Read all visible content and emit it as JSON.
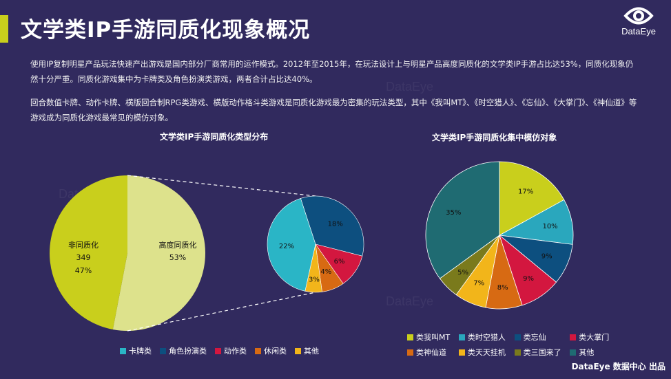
{
  "title": "文学类IP手游同质化现象概况",
  "logo_text": "DataEye",
  "paragraph1": "使用IP复制明星产品玩法快速产出游戏是国内部分厂商常用的运作模式。2012年至2015年，在玩法设计上与明星产品高度同质化的文学类IP手游占比达53%，同质化现象仍然十分严重。同质化游戏集中为卡牌类及角色扮演类游戏，两者合计占比达40%。",
  "paragraph2": "回合数值卡牌、动作卡牌、横版回合制RPG类游戏、横版动作格斗类游戏是同质化游戏最为密集的玩法类型，其中《我叫MT》、《时空猎人》、《忘仙》、《大掌门》、《神仙道》等游戏成为同质化游戏最常见的模仿对象。",
  "watermark": "DataEye",
  "footer": "DataEye 数据中心 出品",
  "chart_data": [
    {
      "type": "pie",
      "title": "文学类IP手游同质化类型分布",
      "main_pie": [
        {
          "name": "非同质化",
          "count": "349",
          "percent": "47%",
          "value": 47,
          "color": "#c9cf1c"
        },
        {
          "name": "高度同质化",
          "percent": "53%",
          "value": 53,
          "color": "#dde28c"
        }
      ],
      "sub_pie": [
        {
          "name": "卡牌类",
          "value": 22,
          "label": "22%",
          "color": "#2ab5c6"
        },
        {
          "name": "角色扮演类",
          "value": 18,
          "label": "18%",
          "color": "#0d4f7f"
        },
        {
          "name": "动作类",
          "value": 6,
          "label": "6%",
          "color": "#d3173f"
        },
        {
          "name": "休闲类",
          "value": 4,
          "label": "4%",
          "color": "#d76a13"
        },
        {
          "name": "其他",
          "value": 3,
          "label": "3%",
          "color": "#f2b51a"
        }
      ]
    },
    {
      "type": "pie",
      "title": "文学类IP手游同质化集中模仿对象",
      "slices": [
        {
          "name": "类我叫MT",
          "value": 17,
          "label": "17%",
          "color": "#c9cf1c"
        },
        {
          "name": "类时空猎人",
          "value": 10,
          "label": "10%",
          "color": "#2aa7bd"
        },
        {
          "name": "类忘仙",
          "value": 9,
          "label": "9%",
          "color": "#0d4f7f"
        },
        {
          "name": "类大掌门",
          "value": 9,
          "label": "9%",
          "color": "#d3173f"
        },
        {
          "name": "类神仙道",
          "value": 8,
          "label": "8%",
          "color": "#d76a13"
        },
        {
          "name": "类天天挂机",
          "value": 7,
          "label": "7%",
          "color": "#f2b51a"
        },
        {
          "name": "类三国来了",
          "value": 5,
          "label": "5%",
          "color": "#7a7a1c"
        },
        {
          "name": "其他",
          "value": 35,
          "label": "35%",
          "color": "#1f6b72"
        }
      ]
    }
  ]
}
